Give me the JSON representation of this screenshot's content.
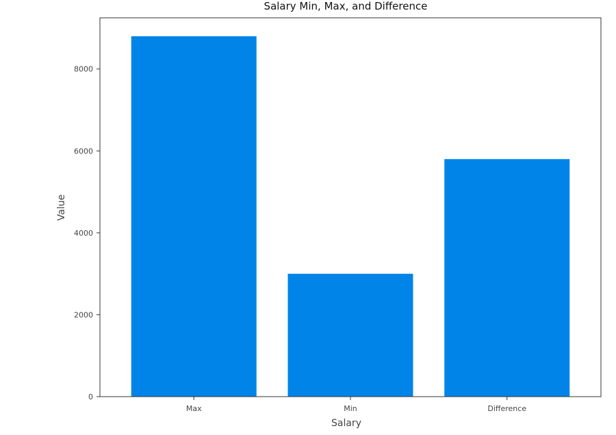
{
  "chart_data": {
    "type": "bar",
    "title": "Salary Min, Max, and Difference",
    "xlabel": "Salary",
    "ylabel": "Value",
    "categories": [
      "Max",
      "Min",
      "Difference"
    ],
    "values": [
      8800,
      3000,
      5800
    ],
    "ylim": [
      0,
      9250
    ],
    "yticks": [
      0,
      2000,
      4000,
      6000,
      8000
    ],
    "ytick_labels": [
      "0",
      "2000",
      "4000",
      "6000",
      "8000"
    ],
    "grid": false,
    "legend": "none",
    "bar_color": "#0084e8"
  }
}
